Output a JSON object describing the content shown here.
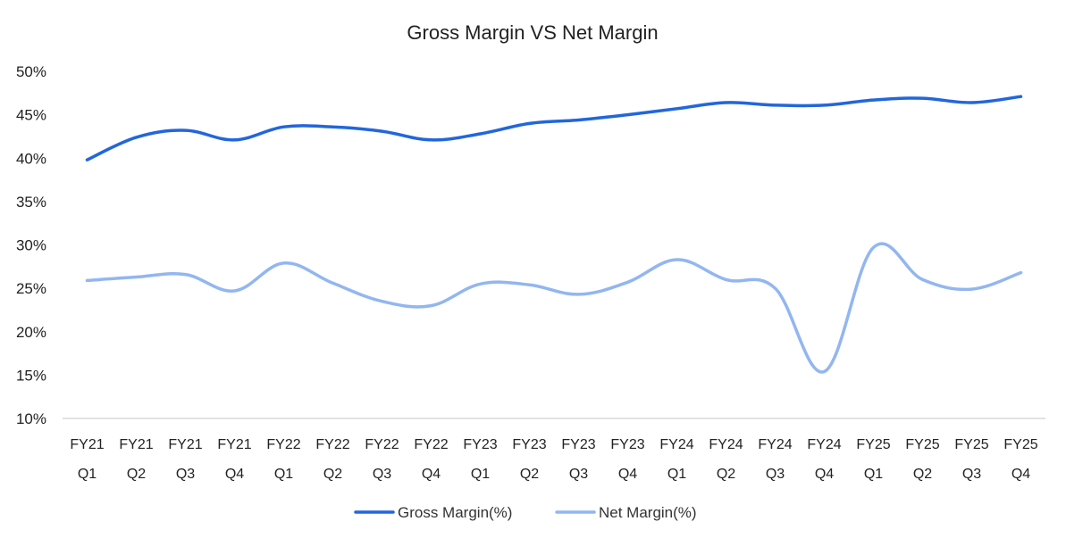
{
  "chart_data": {
    "type": "line",
    "title": "Gross Margin VS Net Margin",
    "categories": [
      [
        "FY21",
        "Q1"
      ],
      [
        "FY21",
        "Q2"
      ],
      [
        "FY21",
        "Q3"
      ],
      [
        "FY21",
        "Q4"
      ],
      [
        "FY22",
        "Q1"
      ],
      [
        "FY22",
        "Q2"
      ],
      [
        "FY22",
        "Q3"
      ],
      [
        "FY22",
        "Q4"
      ],
      [
        "FY23",
        "Q1"
      ],
      [
        "FY23",
        "Q2"
      ],
      [
        "FY23",
        "Q3"
      ],
      [
        "FY23",
        "Q4"
      ],
      [
        "FY24",
        "Q1"
      ],
      [
        "FY24",
        "Q2"
      ],
      [
        "FY24",
        "Q3"
      ],
      [
        "FY24",
        "Q4"
      ],
      [
        "FY25",
        "Q1"
      ],
      [
        "FY25",
        "Q2"
      ],
      [
        "FY25",
        "Q3"
      ],
      [
        "FY25",
        "Q4"
      ]
    ],
    "ylim": [
      10,
      50
    ],
    "yticks": [
      "10%",
      "15%",
      "20%",
      "25%",
      "30%",
      "35%",
      "40%",
      "45%",
      "50%"
    ],
    "ytick_values": [
      10,
      15,
      20,
      25,
      30,
      35,
      40,
      45,
      50
    ],
    "legend_position": "bottom",
    "grid": false,
    "series": [
      {
        "name": "Gross Margin(%)",
        "color": "#2266dd",
        "values": [
          39.8,
          42.4,
          43.2,
          42.1,
          43.6,
          43.6,
          43.1,
          42.1,
          42.8,
          44.0,
          44.4,
          45.0,
          45.7,
          46.4,
          46.1,
          46.1,
          46.7,
          46.9,
          46.4,
          47.1
        ]
      },
      {
        "name": "Net Margin(%)",
        "color": "#92b6f0",
        "values": [
          25.9,
          26.3,
          26.6,
          24.7,
          27.9,
          25.6,
          23.5,
          23.0,
          25.5,
          25.4,
          24.3,
          25.7,
          28.3,
          26.0,
          25.0,
          15.4,
          29.7,
          26.0,
          24.9,
          26.8
        ]
      }
    ]
  }
}
